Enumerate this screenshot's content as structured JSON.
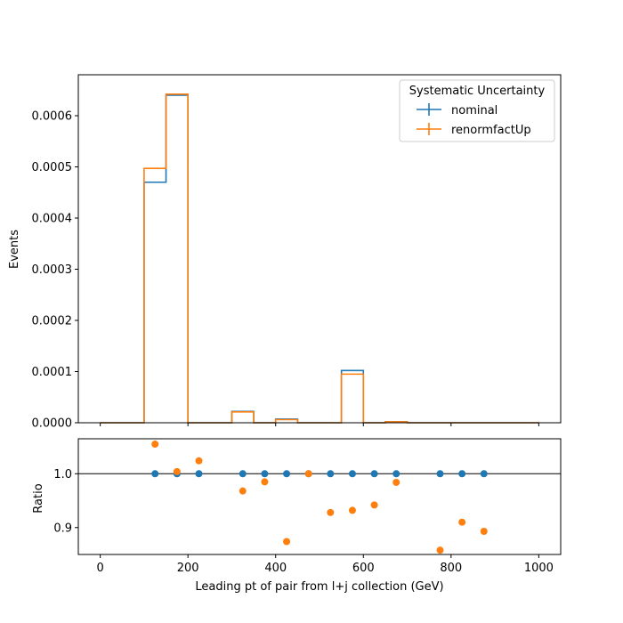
{
  "chart_data": [
    {
      "type": "histogram",
      "ylabel": "Events",
      "xlim": [
        -50,
        1050
      ],
      "ylim": [
        0,
        0.00068
      ],
      "x_ticks": [
        0,
        200,
        400,
        600,
        800,
        1000
      ],
      "y_ticks": [
        0.0,
        0.0001,
        0.0002,
        0.0003,
        0.0004,
        0.0005,
        0.0006
      ],
      "y_tick_labels": [
        "0.0000",
        "0.0001",
        "0.0002",
        "0.0003",
        "0.0004",
        "0.0005",
        "0.0006"
      ],
      "bin_edges": [
        0,
        50,
        100,
        150,
        200,
        250,
        300,
        350,
        400,
        450,
        500,
        550,
        600,
        650,
        700,
        750,
        800,
        850,
        900,
        950,
        1000
      ],
      "legend": {
        "title": "Systematic Uncertainty",
        "placement": "top-right"
      },
      "series": [
        {
          "name": "nominal",
          "color": "#1f77b4",
          "values": [
            0,
            0,
            0.00047,
            0.00064,
            0,
            0,
            2.2e-05,
            0,
            7e-06,
            0,
            0,
            0.000102,
            0,
            2e-06,
            0,
            0,
            0,
            0,
            0,
            0
          ]
        },
        {
          "name": "renormfactUp",
          "color": "#ff7f0e",
          "values": [
            0,
            0,
            0.000497,
            0.000642,
            0,
            0,
            2.12e-05,
            0,
            6.1e-06,
            0,
            0,
            9.5e-05,
            0,
            1.9e-06,
            0,
            0,
            0,
            0,
            0,
            0
          ]
        }
      ]
    },
    {
      "type": "scatter",
      "xlabel": "Leading pt of pair from l+j collection (GeV)",
      "ylabel": "Ratio",
      "xlim": [
        -50,
        1050
      ],
      "ylim": [
        0.85,
        1.065
      ],
      "x_ticks": [
        0,
        200,
        400,
        600,
        800,
        1000
      ],
      "y_ticks": [
        0.9,
        1.0
      ],
      "y_tick_labels": [
        "0.9",
        "1.0"
      ],
      "reference_line": 1.0,
      "series": [
        {
          "name": "nominal",
          "color": "#1f77b4",
          "x": [
            125,
            175,
            225,
            325,
            375,
            425,
            475,
            525,
            575,
            625,
            675,
            775,
            825,
            875
          ],
          "y": [
            1.0,
            1.0,
            1.0,
            1.0,
            1.0,
            1.0,
            1.0,
            1.0,
            1.0,
            1.0,
            1.0,
            1.0,
            1.0,
            1.0
          ]
        },
        {
          "name": "renormfactUp",
          "color": "#ff7f0e",
          "x": [
            125,
            175,
            225,
            325,
            375,
            425,
            475,
            525,
            575,
            625,
            675,
            775,
            825,
            875
          ],
          "y": [
            1.055,
            1.004,
            1.024,
            0.968,
            0.985,
            0.874,
            1.0,
            0.928,
            0.932,
            0.942,
            0.984,
            0.858,
            0.91,
            0.893
          ]
        }
      ]
    }
  ]
}
